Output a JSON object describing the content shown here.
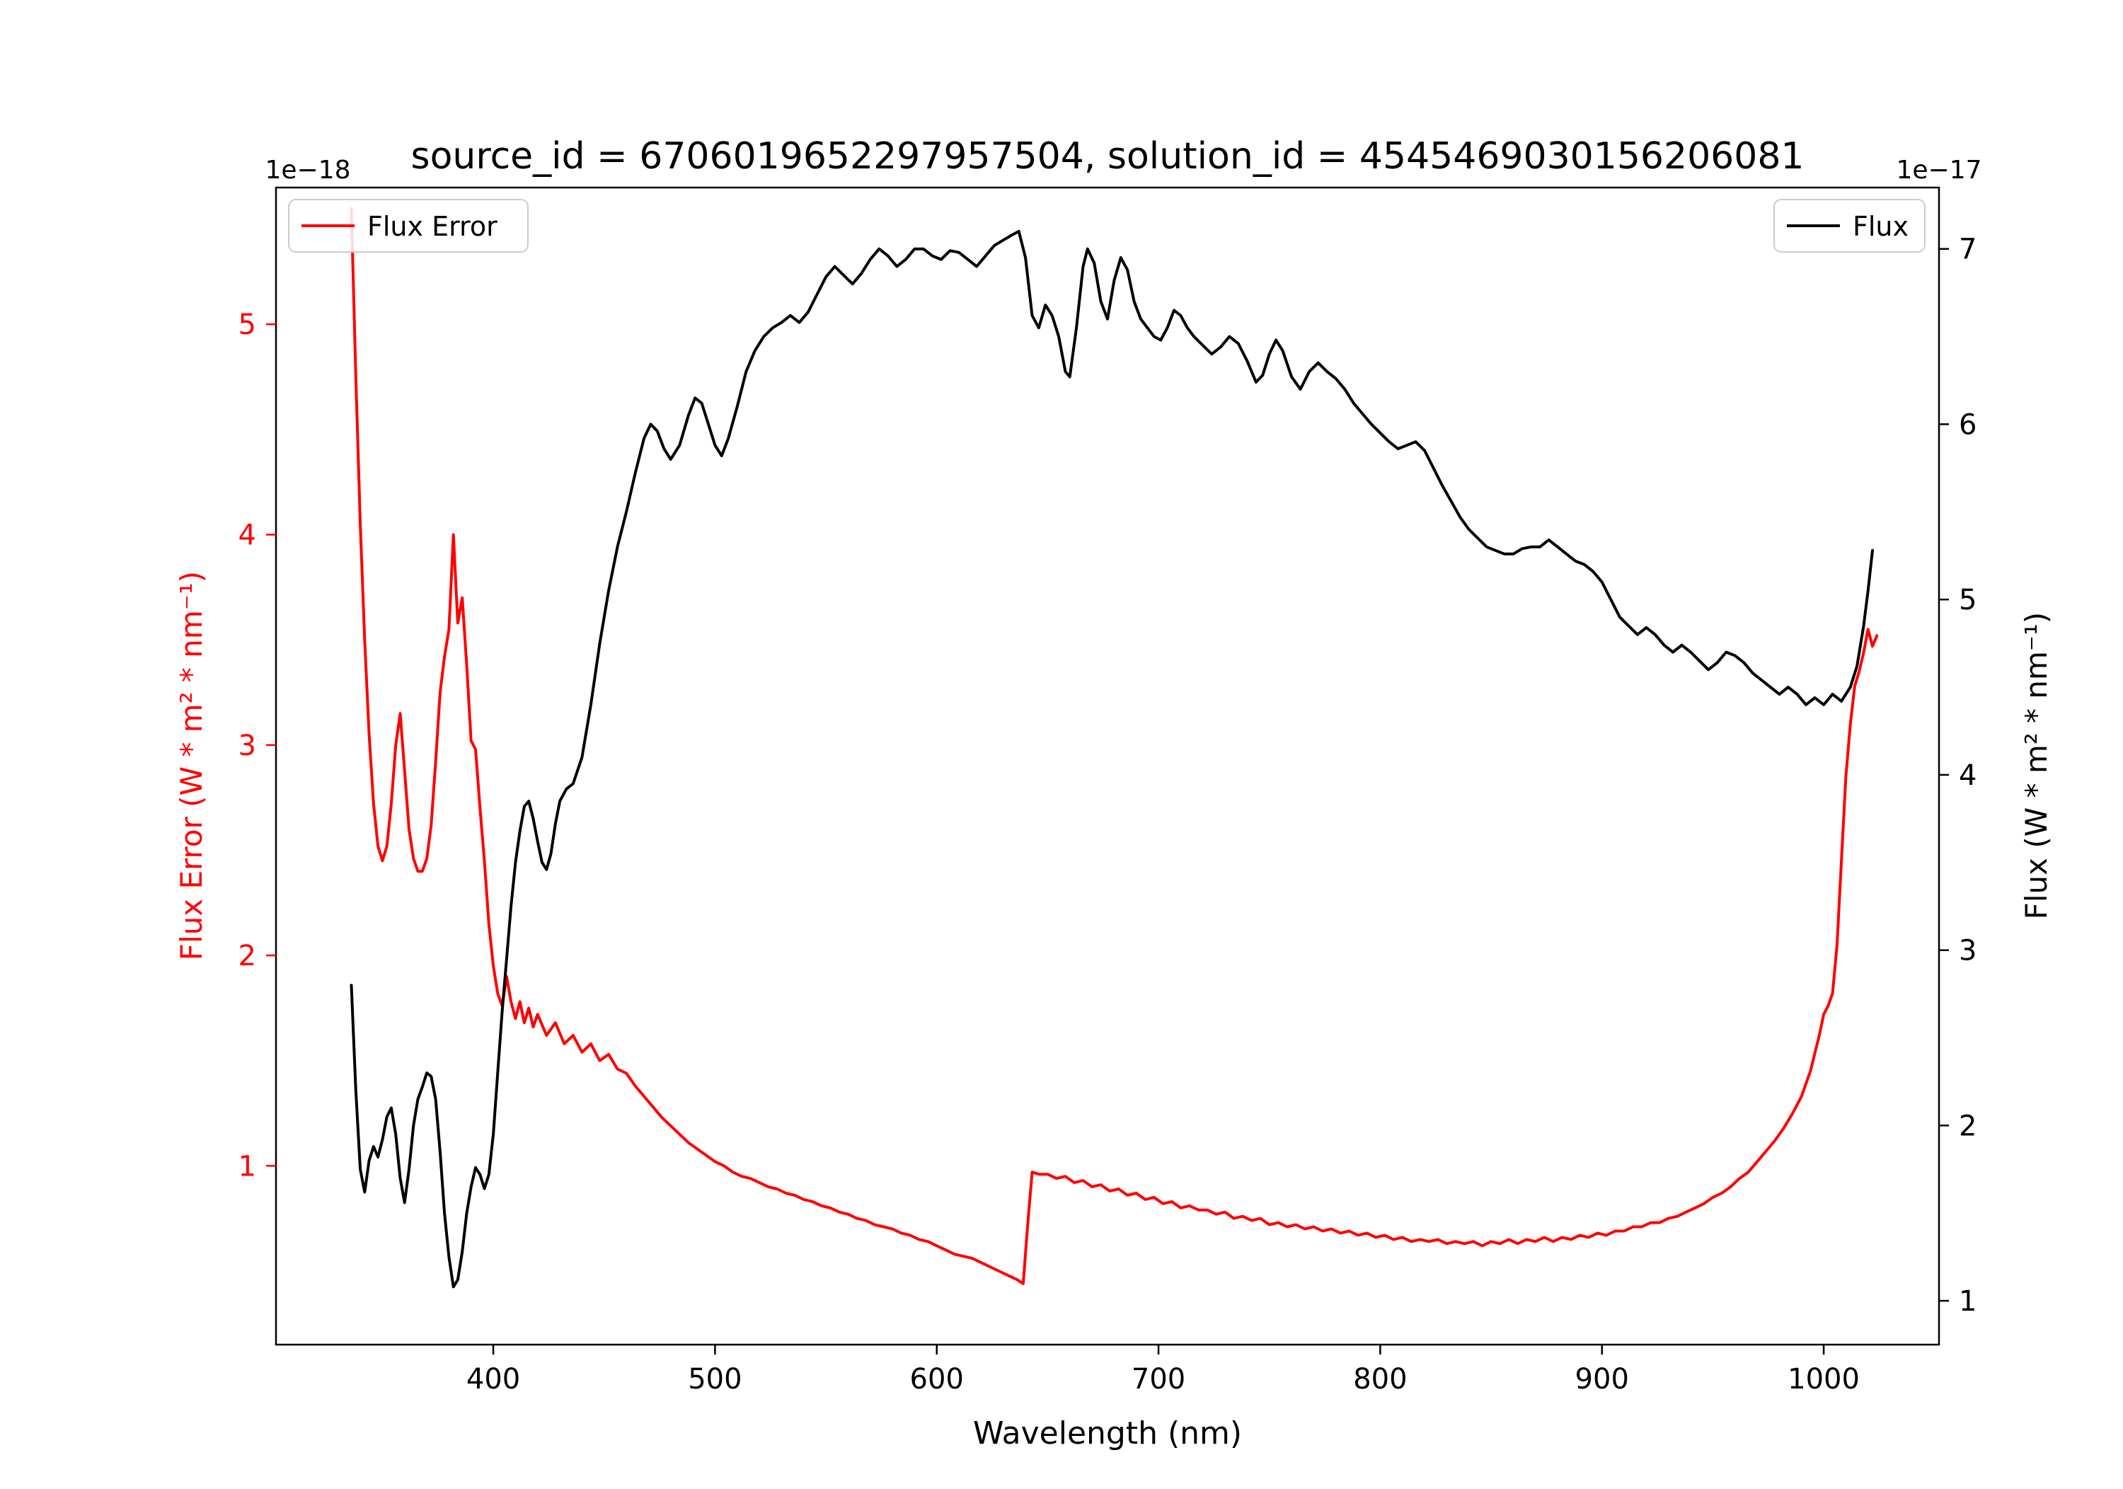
{
  "chart_data": {
    "type": "line",
    "title": "source_id = 6706019652297957504, solution_id = 4545469030156206081",
    "xlabel": "Wavelength (nm)",
    "ylabel_left": "Flux Error (W * m² * nm⁻¹)",
    "ylabel_right": "Flux (W * m² * nm⁻¹)",
    "offset_left": "1e−18",
    "offset_right": "1e−17",
    "xlim": [
      302,
      1052
    ],
    "ylim_left": [
      0.15,
      5.65
    ],
    "ylim_right": [
      0.75,
      7.35
    ],
    "xticks": [
      400,
      500,
      600,
      700,
      800,
      900,
      1000
    ],
    "yticks_left": [
      1,
      2,
      3,
      4,
      5
    ],
    "yticks_right": [
      1,
      2,
      3,
      4,
      5,
      6,
      7
    ],
    "grid": false,
    "legend_positions": [
      "upper-left",
      "upper-right"
    ],
    "series": [
      {
        "name": "Flux Error",
        "axis": "left",
        "units_scale": "1e-18",
        "color": "#ff0000",
        "x": [
          336,
          338,
          340,
          342,
          344,
          346,
          348,
          350,
          352,
          354,
          356,
          358,
          360,
          362,
          364,
          366,
          368,
          370,
          372,
          374,
          376,
          378,
          380,
          382,
          384,
          386,
          388,
          390,
          392,
          394,
          396,
          398,
          400,
          402,
          404,
          406,
          408,
          410,
          412,
          414,
          416,
          418,
          420,
          424,
          428,
          432,
          436,
          440,
          444,
          448,
          452,
          456,
          460,
          464,
          468,
          472,
          476,
          480,
          484,
          488,
          492,
          496,
          500,
          504,
          508,
          512,
          516,
          520,
          524,
          528,
          532,
          536,
          540,
          544,
          548,
          552,
          556,
          560,
          564,
          568,
          572,
          576,
          580,
          584,
          588,
          592,
          596,
          600,
          604,
          608,
          612,
          616,
          620,
          624,
          628,
          632,
          636,
          639,
          641,
          643,
          646,
          650,
          654,
          658,
          662,
          666,
          670,
          674,
          678,
          682,
          686,
          690,
          694,
          698,
          702,
          706,
          710,
          714,
          718,
          722,
          726,
          730,
          734,
          738,
          742,
          746,
          750,
          754,
          758,
          762,
          766,
          770,
          774,
          778,
          782,
          786,
          790,
          794,
          798,
          802,
          806,
          810,
          814,
          818,
          822,
          826,
          830,
          834,
          838,
          842,
          846,
          850,
          854,
          858,
          862,
          866,
          870,
          874,
          878,
          882,
          886,
          890,
          894,
          898,
          902,
          906,
          910,
          914,
          918,
          922,
          926,
          930,
          934,
          938,
          942,
          946,
          950,
          954,
          958,
          962,
          966,
          970,
          974,
          978,
          982,
          986,
          990,
          994,
          998,
          1000,
          1002,
          1004,
          1006,
          1008,
          1010,
          1012,
          1014,
          1016,
          1018,
          1020,
          1022,
          1024
        ],
        "y": [
          5.55,
          4.75,
          4.05,
          3.5,
          3.05,
          2.72,
          2.52,
          2.45,
          2.52,
          2.72,
          3.0,
          3.15,
          2.88,
          2.6,
          2.46,
          2.4,
          2.4,
          2.46,
          2.62,
          2.92,
          3.25,
          3.42,
          3.55,
          4.0,
          3.58,
          3.7,
          3.38,
          3.02,
          2.98,
          2.7,
          2.45,
          2.15,
          1.95,
          1.82,
          1.76,
          1.9,
          1.78,
          1.7,
          1.78,
          1.68,
          1.75,
          1.66,
          1.72,
          1.62,
          1.68,
          1.58,
          1.62,
          1.54,
          1.58,
          1.5,
          1.53,
          1.46,
          1.44,
          1.38,
          1.33,
          1.28,
          1.23,
          1.19,
          1.15,
          1.11,
          1.08,
          1.05,
          1.02,
          1.0,
          0.97,
          0.95,
          0.94,
          0.92,
          0.9,
          0.89,
          0.87,
          0.86,
          0.84,
          0.83,
          0.81,
          0.8,
          0.78,
          0.77,
          0.75,
          0.74,
          0.72,
          0.71,
          0.7,
          0.68,
          0.67,
          0.65,
          0.64,
          0.62,
          0.6,
          0.58,
          0.57,
          0.56,
          0.54,
          0.52,
          0.5,
          0.48,
          0.46,
          0.44,
          0.72,
          0.97,
          0.96,
          0.96,
          0.94,
          0.95,
          0.92,
          0.93,
          0.9,
          0.91,
          0.88,
          0.89,
          0.86,
          0.87,
          0.84,
          0.85,
          0.82,
          0.83,
          0.8,
          0.81,
          0.79,
          0.79,
          0.77,
          0.78,
          0.75,
          0.76,
          0.74,
          0.75,
          0.72,
          0.73,
          0.71,
          0.72,
          0.7,
          0.71,
          0.69,
          0.7,
          0.68,
          0.69,
          0.67,
          0.68,
          0.66,
          0.67,
          0.65,
          0.66,
          0.64,
          0.65,
          0.64,
          0.65,
          0.63,
          0.64,
          0.63,
          0.64,
          0.62,
          0.64,
          0.63,
          0.65,
          0.63,
          0.65,
          0.64,
          0.66,
          0.64,
          0.66,
          0.65,
          0.67,
          0.66,
          0.68,
          0.67,
          0.69,
          0.69,
          0.71,
          0.71,
          0.73,
          0.73,
          0.75,
          0.76,
          0.78,
          0.8,
          0.82,
          0.85,
          0.87,
          0.9,
          0.94,
          0.97,
          1.02,
          1.07,
          1.12,
          1.18,
          1.25,
          1.33,
          1.45,
          1.62,
          1.72,
          1.76,
          1.82,
          2.05,
          2.45,
          2.85,
          3.1,
          3.28,
          3.35,
          3.44,
          3.55,
          3.47,
          3.52
        ]
      },
      {
        "name": "Flux",
        "axis": "right",
        "units_scale": "1e-17",
        "color": "#000000",
        "x": [
          336,
          338,
          340,
          342,
          344,
          346,
          348,
          350,
          352,
          354,
          356,
          358,
          360,
          362,
          364,
          366,
          368,
          370,
          372,
          374,
          376,
          378,
          380,
          382,
          384,
          386,
          388,
          390,
          392,
          394,
          396,
          398,
          400,
          402,
          404,
          406,
          408,
          410,
          412,
          414,
          416,
          418,
          420,
          422,
          424,
          426,
          428,
          430,
          433,
          436,
          440,
          444,
          448,
          452,
          456,
          460,
          464,
          468,
          471,
          474,
          477,
          480,
          484,
          488,
          491,
          494,
          497,
          500,
          503,
          506,
          510,
          514,
          518,
          522,
          526,
          530,
          534,
          538,
          542,
          546,
          550,
          554,
          558,
          562,
          566,
          570,
          574,
          578,
          582,
          586,
          590,
          594,
          598,
          602,
          606,
          610,
          614,
          618,
          622,
          626,
          630,
          634,
          637,
          640,
          643,
          646,
          649,
          652,
          655,
          658,
          660,
          663,
          666,
          668,
          671,
          674,
          677,
          680,
          683,
          686,
          689,
          692,
          695,
          698,
          701,
          704,
          707,
          710,
          713,
          716,
          720,
          724,
          728,
          732,
          736,
          740,
          744,
          747,
          750,
          753,
          756,
          760,
          764,
          768,
          772,
          776,
          780,
          784,
          788,
          792,
          796,
          800,
          804,
          808,
          812,
          816,
          820,
          824,
          828,
          832,
          836,
          840,
          844,
          848,
          852,
          856,
          860,
          864,
          868,
          872,
          876,
          880,
          884,
          888,
          892,
          896,
          900,
          904,
          908,
          912,
          916,
          920,
          924,
          928,
          932,
          936,
          940,
          944,
          948,
          952,
          956,
          960,
          964,
          968,
          972,
          976,
          980,
          984,
          988,
          992,
          996,
          1000,
          1004,
          1008,
          1012,
          1015,
          1018,
          1020,
          1022
        ],
        "y": [
          2.8,
          2.2,
          1.75,
          1.62,
          1.8,
          1.88,
          1.82,
          1.92,
          2.05,
          2.1,
          1.95,
          1.7,
          1.56,
          1.75,
          2.0,
          2.15,
          2.22,
          2.3,
          2.28,
          2.15,
          1.85,
          1.5,
          1.25,
          1.08,
          1.12,
          1.28,
          1.5,
          1.65,
          1.76,
          1.72,
          1.64,
          1.72,
          1.95,
          2.3,
          2.65,
          2.95,
          3.25,
          3.5,
          3.68,
          3.82,
          3.85,
          3.75,
          3.62,
          3.5,
          3.46,
          3.55,
          3.72,
          3.85,
          3.92,
          3.95,
          4.1,
          4.4,
          4.75,
          5.05,
          5.3,
          5.5,
          5.72,
          5.92,
          6.0,
          5.96,
          5.86,
          5.8,
          5.88,
          6.05,
          6.15,
          6.12,
          6.0,
          5.88,
          5.82,
          5.92,
          6.1,
          6.3,
          6.42,
          6.5,
          6.55,
          6.58,
          6.62,
          6.58,
          6.64,
          6.74,
          6.84,
          6.9,
          6.85,
          6.8,
          6.86,
          6.94,
          7.0,
          6.96,
          6.9,
          6.94,
          7.0,
          7.0,
          6.96,
          6.94,
          6.99,
          6.98,
          6.94,
          6.9,
          6.96,
          7.02,
          7.05,
          7.08,
          7.1,
          6.95,
          6.62,
          6.55,
          6.68,
          6.62,
          6.5,
          6.3,
          6.27,
          6.55,
          6.9,
          7.0,
          6.92,
          6.7,
          6.6,
          6.82,
          6.95,
          6.88,
          6.7,
          6.6,
          6.55,
          6.5,
          6.48,
          6.55,
          6.65,
          6.62,
          6.55,
          6.5,
          6.45,
          6.4,
          6.44,
          6.5,
          6.46,
          6.36,
          6.24,
          6.28,
          6.4,
          6.48,
          6.42,
          6.27,
          6.2,
          6.3,
          6.35,
          6.3,
          6.26,
          6.2,
          6.12,
          6.06,
          6.0,
          5.95,
          5.9,
          5.86,
          5.88,
          5.9,
          5.85,
          5.75,
          5.65,
          5.56,
          5.47,
          5.4,
          5.35,
          5.3,
          5.28,
          5.26,
          5.26,
          5.29,
          5.3,
          5.3,
          5.34,
          5.3,
          5.26,
          5.22,
          5.2,
          5.16,
          5.1,
          5.0,
          4.9,
          4.85,
          4.8,
          4.84,
          4.8,
          4.74,
          4.7,
          4.74,
          4.7,
          4.65,
          4.6,
          4.64,
          4.7,
          4.68,
          4.64,
          4.58,
          4.54,
          4.5,
          4.46,
          4.5,
          4.46,
          4.4,
          4.44,
          4.4,
          4.46,
          4.42,
          4.5,
          4.62,
          4.85,
          5.05,
          5.28
        ]
      }
    ]
  },
  "colors": {
    "flux_error_line": "#ff0000",
    "flux_line": "#000000",
    "legend_border": "#cccccc",
    "axis": "#000000",
    "background": "#ffffff"
  }
}
